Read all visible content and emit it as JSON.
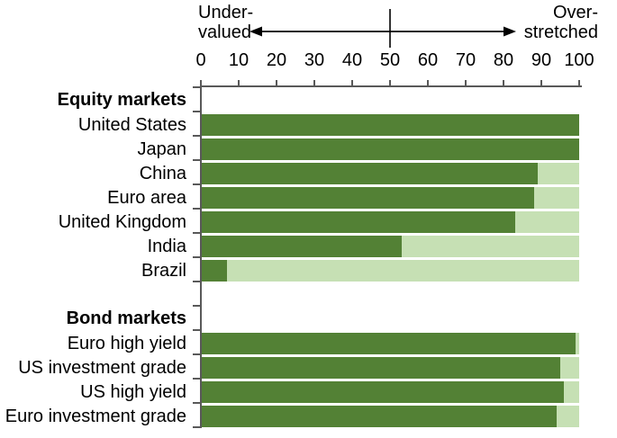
{
  "chart_data": {
    "type": "bar",
    "orientation": "horizontal",
    "title": "",
    "axis": {
      "min": 0,
      "max": 100,
      "tick_labels": [
        0,
        10,
        20,
        30,
        40,
        50,
        60,
        70,
        80,
        90,
        100
      ],
      "midline_value": 50,
      "left_end_label": "Under-\nvalued",
      "right_end_label": "Over-\nstretched",
      "position": "top",
      "grid": false
    },
    "legend": null,
    "sections": [
      {
        "title": "Equity markets",
        "items": [
          {
            "label": "United States",
            "value": 100
          },
          {
            "label": "Japan",
            "value": 100
          },
          {
            "label": "China",
            "value": 89
          },
          {
            "label": "Euro area",
            "value": 88
          },
          {
            "label": "United Kingdom",
            "value": 83
          },
          {
            "label": "India",
            "value": 53
          },
          {
            "label": "Brazil",
            "value": 7
          }
        ]
      },
      {
        "title": "Bond markets",
        "items": [
          {
            "label": "Euro high yield",
            "value": 99
          },
          {
            "label": "US investment grade",
            "value": 95
          },
          {
            "label": "US high yield",
            "value": 96
          },
          {
            "label": "Euro investment grade",
            "value": 94
          }
        ]
      }
    ],
    "colors": {
      "bar_value": "#538135",
      "bar_remainder": "#c6e0b4",
      "axis_line": "#595959",
      "annotation": "#000000"
    }
  }
}
